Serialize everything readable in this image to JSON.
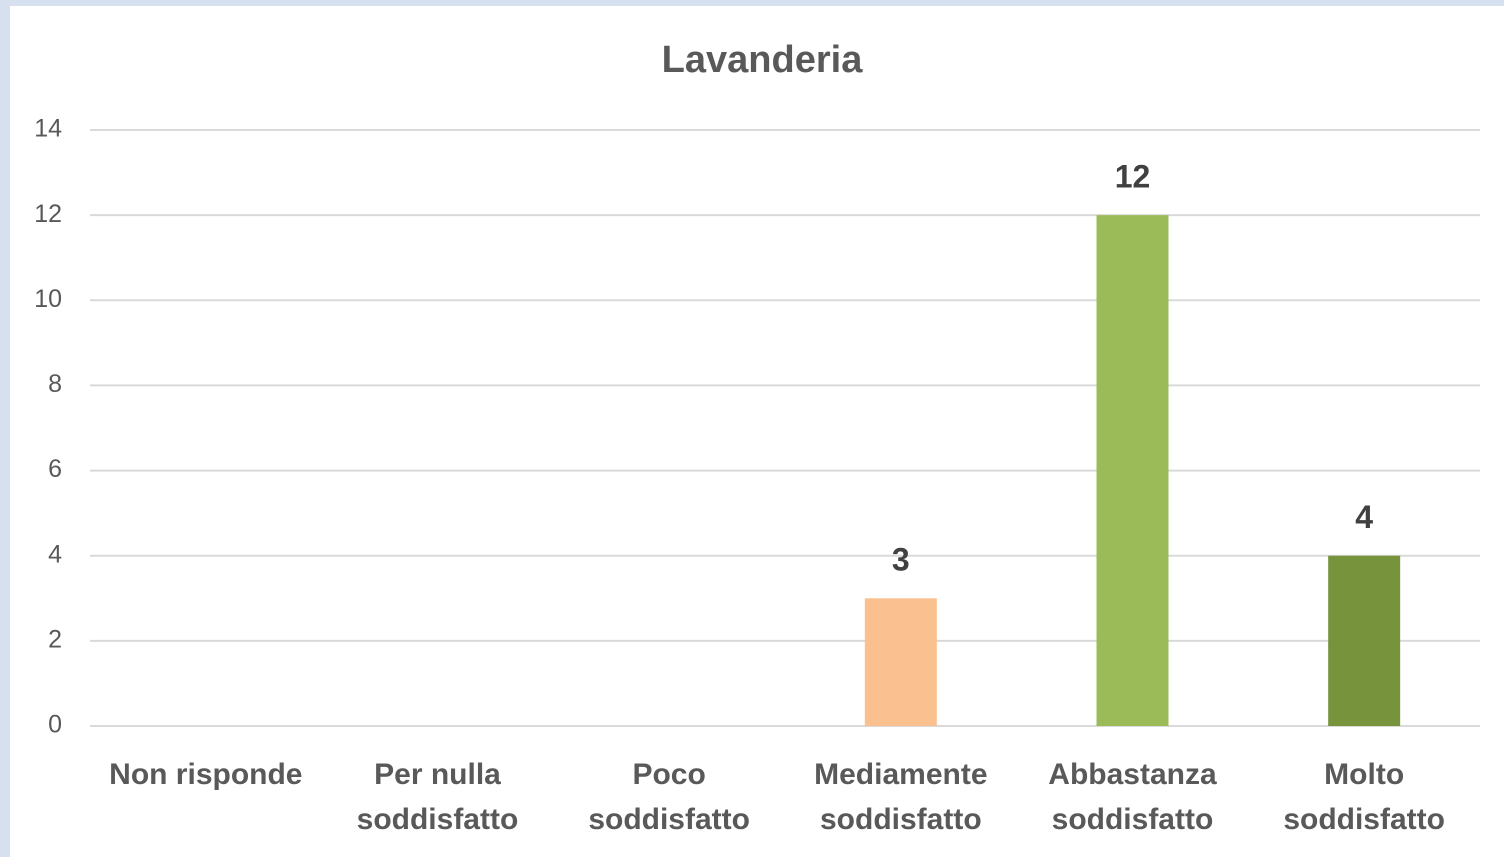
{
  "chart_data": {
    "type": "bar",
    "title": "Lavanderia",
    "categories": [
      "Non risponde",
      "Per nulla soddisfatto",
      "Poco soddisfatto",
      "Mediamente soddisfatto",
      "Abbastanza soddisfatto",
      "Molto soddisfatto"
    ],
    "values": [
      0,
      0,
      0,
      3,
      12,
      4
    ],
    "value_labels": [
      null,
      null,
      null,
      "3",
      "12",
      "4"
    ],
    "colors": [
      null,
      null,
      null,
      "#fac090",
      "#9bbb59",
      "#77933c"
    ],
    "ylim": [
      0,
      14
    ],
    "yticks": [
      0,
      2,
      4,
      6,
      8,
      10,
      12,
      14
    ],
    "grid": true
  }
}
